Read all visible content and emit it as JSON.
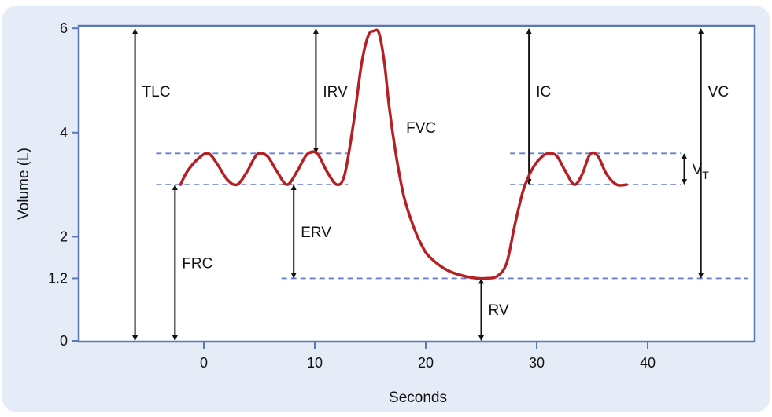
{
  "chart_data": {
    "type": "line",
    "title": "",
    "xlabel": "Seconds",
    "ylabel": "Volume (L)",
    "xlim": [
      -11,
      49
    ],
    "ylim": [
      0,
      6
    ],
    "xticks": [
      0,
      10,
      20,
      30,
      40
    ],
    "yticks": [
      0,
      1.2,
      2,
      4,
      6
    ],
    "xtick_labels": [
      "0",
      "10",
      "20",
      "30",
      "40"
    ],
    "ytick_labels": [
      "0",
      "1.2",
      "2",
      "4",
      "6"
    ],
    "grid": false,
    "legend": "none",
    "series": [
      {
        "x": [
          -2.1,
          -1.5,
          -0.5,
          0.4,
          1.2,
          2.1,
          3.0,
          3.9,
          4.8,
          5.7,
          6.6,
          7.5,
          8.4,
          9.3,
          10.2,
          11.1,
          12.0,
          12.7,
          13.5,
          14.2,
          14.8,
          15.3,
          15.8,
          16.3,
          16.7,
          17.3,
          18.0,
          18.8,
          19.6,
          20.4,
          22.0,
          24.0,
          25.5,
          26.5,
          27.3,
          28.0,
          28.8,
          29.6,
          30.3,
          31.0,
          31.8,
          32.6,
          33.4,
          34.1,
          34.8,
          35.5,
          36.3,
          37.2,
          38.1
        ],
        "y": [
          3.0,
          3.25,
          3.5,
          3.6,
          3.4,
          3.1,
          3.0,
          3.25,
          3.58,
          3.55,
          3.25,
          3.0,
          3.25,
          3.58,
          3.6,
          3.25,
          3.0,
          3.2,
          4.2,
          5.3,
          5.85,
          5.95,
          5.9,
          5.3,
          4.5,
          3.6,
          2.8,
          2.25,
          1.85,
          1.6,
          1.35,
          1.22,
          1.2,
          1.25,
          1.5,
          2.2,
          2.9,
          3.3,
          3.5,
          3.6,
          3.55,
          3.25,
          3.0,
          3.2,
          3.58,
          3.55,
          3.2,
          3.0,
          3.0
        ]
      }
    ],
    "reference_lines": [
      {
        "y": 3.6,
        "x_from": -4.3,
        "x_to": 13
      },
      {
        "y": 3.0,
        "x_from": -4.3,
        "x_to": 13
      },
      {
        "y": 3.6,
        "x_from": 27.6,
        "x_to": 43
      },
      {
        "y": 3.0,
        "x_from": 27.6,
        "x_to": 43
      },
      {
        "y": 1.2,
        "x_from": 7,
        "x_to": 49
      }
    ],
    "annotations": [
      {
        "label": "TLC",
        "x": -6.2,
        "y_from": 0,
        "y_to": 6,
        "label_y": 4.8
      },
      {
        "label": "FRC",
        "x": -2.6,
        "y_from": 0,
        "y_to": 3.0,
        "label_y": 1.5
      },
      {
        "label": "IRV",
        "x": 10.1,
        "y_from": 3.6,
        "y_to": 6,
        "label_y": 4.8
      },
      {
        "label": "ERV",
        "x": 8.1,
        "y_from": 1.2,
        "y_to": 3.0,
        "label_y": 2.1
      },
      {
        "label": "FVC",
        "x": 17.6,
        "label_y": 4.1
      },
      {
        "label": "RV",
        "x": 25.0,
        "y_from": 0,
        "y_to": 1.2,
        "label_y": 0.6
      },
      {
        "label": "IC",
        "x": 29.3,
        "y_from": 3.0,
        "y_to": 6,
        "label_y": 4.8
      },
      {
        "label": "VC",
        "x": 44.8,
        "y_from": 1.2,
        "y_to": 6,
        "label_y": 4.8
      },
      {
        "label": "V",
        "sub": "T",
        "x": 43.3,
        "y_from": 3.0,
        "y_to": 3.6,
        "label_y": 3.3
      }
    ]
  },
  "colors": {
    "panel_background": "#e5ecf7",
    "plot_background": "#ffffff",
    "axis": "#5b78b5",
    "curve": "#b52025",
    "dashed": "#6b7fcc",
    "arrow": "#111111"
  }
}
